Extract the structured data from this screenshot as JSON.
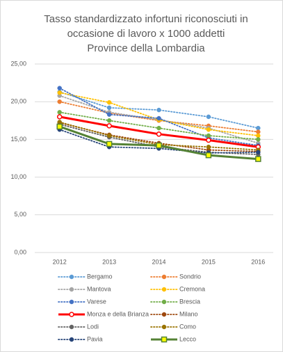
{
  "chart_data": {
    "type": "line",
    "title": [
      "Tasso standardizzato infortuni riconosciuti in",
      "occasione di lavoro x 1000 addetti",
      "Province della Lombardia"
    ],
    "categories": [
      "2012",
      "2013",
      "2014",
      "2015",
      "2016"
    ],
    "ylim": [
      0,
      25
    ],
    "yticks": [
      {
        "value": 0,
        "label": "0,00"
      },
      {
        "value": 5,
        "label": "5,00"
      },
      {
        "value": 10,
        "label": "10,00"
      },
      {
        "value": 15,
        "label": "15,00"
      },
      {
        "value": 20,
        "label": "20,00"
      },
      {
        "value": 25,
        "label": "25,00"
      }
    ],
    "grid": true,
    "legend": "bottom",
    "series": [
      {
        "name": "Bergamo",
        "color": "#5b9bd5",
        "style": "dotted",
        "marker": "circle",
        "values": [
          21.3,
          19.2,
          18.9,
          18.0,
          16.5
        ]
      },
      {
        "name": "Sondrio",
        "color": "#ed7d31",
        "style": "dotted",
        "marker": "circle",
        "values": [
          20.0,
          18.5,
          17.5,
          16.8,
          16.0
        ]
      },
      {
        "name": "Mantova",
        "color": "#a5a5a5",
        "style": "dotted",
        "marker": "circle",
        "values": [
          20.8,
          18.6,
          17.6,
          16.5,
          14.5
        ]
      },
      {
        "name": "Cremona",
        "color": "#ffc000",
        "style": "dotted",
        "marker": "circle",
        "values": [
          21.2,
          19.9,
          17.6,
          16.3,
          15.5
        ]
      },
      {
        "name": "Varese",
        "color": "#4472c4",
        "style": "dotted",
        "marker": "circle",
        "values": [
          21.8,
          18.3,
          17.8,
          15.2,
          14.2
        ]
      },
      {
        "name": "Brescia",
        "color": "#70ad47",
        "style": "dotted",
        "marker": "circle",
        "values": [
          18.6,
          17.5,
          16.5,
          15.5,
          15.0
        ]
      },
      {
        "name": "Monza e della Brianza",
        "color": "#ff0000",
        "style": "solid",
        "marker": "circle",
        "marker_fill": "#ffffff",
        "values": [
          18.0,
          16.8,
          15.7,
          14.9,
          14.0
        ]
      },
      {
        "name": "Milano",
        "color": "#9e480e",
        "style": "dotted",
        "marker": "circle",
        "values": [
          17.2,
          15.6,
          14.5,
          13.6,
          13.4
        ]
      },
      {
        "name": "Lodi",
        "color": "#636363",
        "style": "dotted",
        "marker": "circle",
        "values": [
          17.0,
          15.3,
          14.0,
          13.3,
          13.0
        ]
      },
      {
        "name": "Como",
        "color": "#997300",
        "style": "dotted",
        "marker": "circle",
        "values": [
          17.3,
          15.5,
          14.3,
          14.0,
          13.6
        ]
      },
      {
        "name": "Pavia",
        "color": "#264478",
        "style": "dotted",
        "marker": "circle",
        "values": [
          16.3,
          14.0,
          13.8,
          13.2,
          13.3
        ]
      },
      {
        "name": "Lecco",
        "color": "#548235",
        "style": "solid",
        "marker": "square",
        "marker_fill": "#ffff00",
        "values": [
          16.7,
          14.4,
          14.2,
          12.9,
          12.4
        ]
      }
    ]
  }
}
